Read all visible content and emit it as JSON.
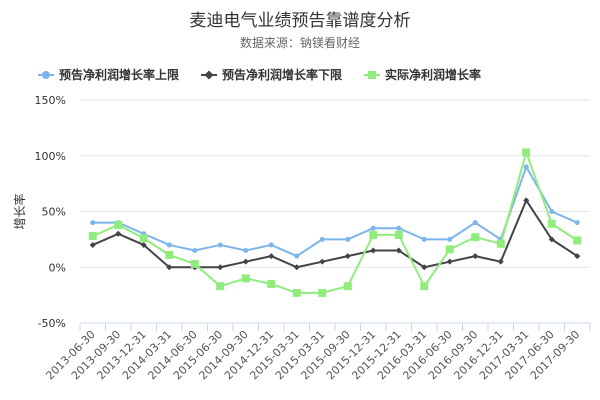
{
  "chart_data": {
    "type": "line",
    "title": "麦迪电气业绩预告靠谱度分析",
    "subtitle": "数据来源：钠镁看财经",
    "ylabel": "增长率",
    "ylim": [
      -50,
      150
    ],
    "yticks": [
      -50,
      0,
      50,
      100,
      150
    ],
    "ytick_labels": [
      "-50%",
      "0%",
      "50%",
      "100%",
      "150%"
    ],
    "grid": true,
    "legend_position": "top-left",
    "categories": [
      "2013-06-30",
      "2013-09-30",
      "2013-12-31",
      "2014-03-31",
      "2014-06-30",
      "2015-06-30",
      "2014-09-30",
      "2014-12-31",
      "2015-03-31",
      "2015-03-31",
      "2015-09-30",
      "2015-12-31",
      "2015-12-31",
      "2016-03-31",
      "2016-06-30",
      "2016-09-30",
      "2016-12-31",
      "2017-03-31",
      "2017-06-30",
      "2017-09-30"
    ],
    "series": [
      {
        "name": "预告净利润增长率上限",
        "color": "#7cb5ec",
        "marker": "circle",
        "values": [
          40,
          40,
          30,
          20,
          15,
          20,
          15,
          20,
          10,
          25,
          25,
          35,
          35,
          25,
          25,
          40,
          25,
          90,
          50,
          40
        ]
      },
      {
        "name": "预告净利润增长率下限",
        "color": "#434348",
        "marker": "diamond",
        "values": [
          20,
          30,
          20,
          0,
          0,
          0,
          5,
          10,
          0,
          5,
          10,
          15,
          15,
          0,
          5,
          10,
          5,
          60,
          25,
          10
        ]
      },
      {
        "name": "实际净利润增长率",
        "color": "#90ed7d",
        "marker": "square",
        "values": [
          28,
          38,
          26,
          11,
          3,
          -17,
          -10,
          -15,
          -23,
          -23,
          -17,
          29,
          29,
          -17,
          16,
          27,
          21,
          103,
          39,
          24
        ]
      }
    ]
  }
}
